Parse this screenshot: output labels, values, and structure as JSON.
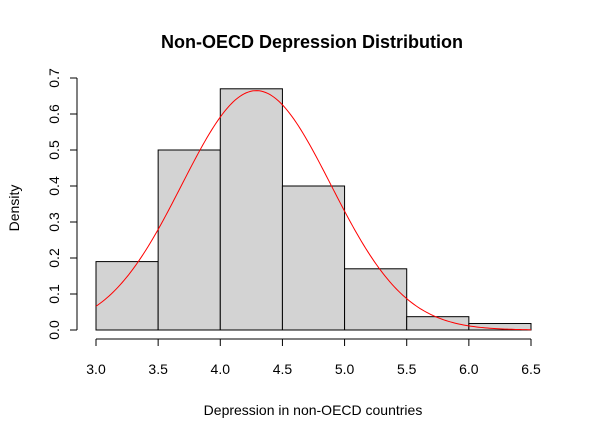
{
  "chart_data": {
    "type": "histogram",
    "title": "Non-OECD Depression Distribution",
    "xlabel": "Depression in non-OECD countries",
    "ylabel": "Density",
    "xlim": [
      3.0,
      6.5
    ],
    "ylim": [
      0,
      0.7
    ],
    "x_ticks": [
      "3.0",
      "3.5",
      "4.0",
      "4.5",
      "5.0",
      "5.5",
      "6.0",
      "6.5"
    ],
    "y_ticks": [
      "0.0",
      "0.1",
      "0.2",
      "0.3",
      "0.4",
      "0.5",
      "0.6",
      "0.7"
    ],
    "bins": [
      {
        "start": 3.0,
        "end": 3.5,
        "density": 0.19
      },
      {
        "start": 3.5,
        "end": 4.0,
        "density": 0.5
      },
      {
        "start": 4.0,
        "end": 4.5,
        "density": 0.67
      },
      {
        "start": 4.5,
        "end": 5.0,
        "density": 0.4
      },
      {
        "start": 5.0,
        "end": 5.5,
        "density": 0.17
      },
      {
        "start": 5.5,
        "end": 6.0,
        "density": 0.037
      },
      {
        "start": 6.0,
        "end": 6.5,
        "density": 0.018
      }
    ],
    "density_curve": {
      "type": "normal",
      "mean": 4.29,
      "sd": 0.6,
      "range": [
        3.0,
        6.5
      ]
    },
    "grid": false,
    "colors": {
      "bar_fill": "#d3d3d3",
      "bar_stroke": "#000000",
      "curve": "#ff0000",
      "axis": "#000000",
      "background": "#ffffff"
    }
  }
}
